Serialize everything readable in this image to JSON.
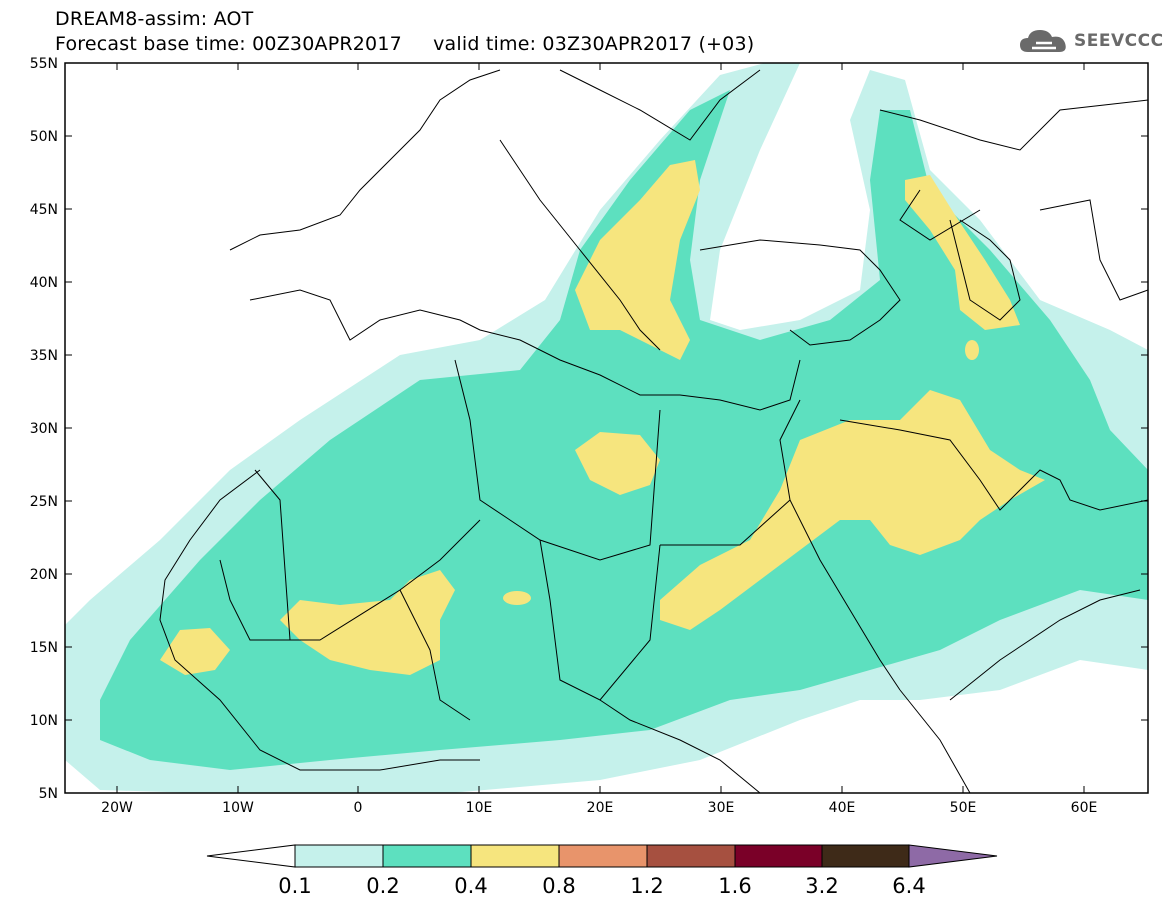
{
  "header": {
    "title_line1": "DREAM8-assim: AOT",
    "title_line2": "Forecast base time: 00Z30APR2017     valid time: 03Z30APR2017 (+03)"
  },
  "logo": {
    "text": "SEEVCCC",
    "icon": "cloud-logo-icon",
    "color": "#6a6a6a"
  },
  "map": {
    "lat_ticks": [
      "55N",
      "50N",
      "45N",
      "40N",
      "35N",
      "30N",
      "25N",
      "20N",
      "15N",
      "10N",
      "5N"
    ],
    "lon_ticks": [
      "20W",
      "10W",
      "0",
      "10E",
      "20E",
      "30E",
      "40E",
      "50E",
      "60E"
    ]
  },
  "colorbar": {
    "labels": [
      "0.1",
      "0.2",
      "0.4",
      "0.8",
      "1.2",
      "1.6",
      "3.2",
      "6.4"
    ],
    "colors": [
      "#ffffff",
      "#c5f1eb",
      "#5de0bf",
      "#f6e57e",
      "#e8946b",
      "#a65040",
      "#7a0028",
      "#3e2a18",
      "#8e6aa6"
    ]
  },
  "palette": {
    "c01": "#c5f1eb",
    "c02": "#5de0bf",
    "c04": "#f6e57e"
  }
}
